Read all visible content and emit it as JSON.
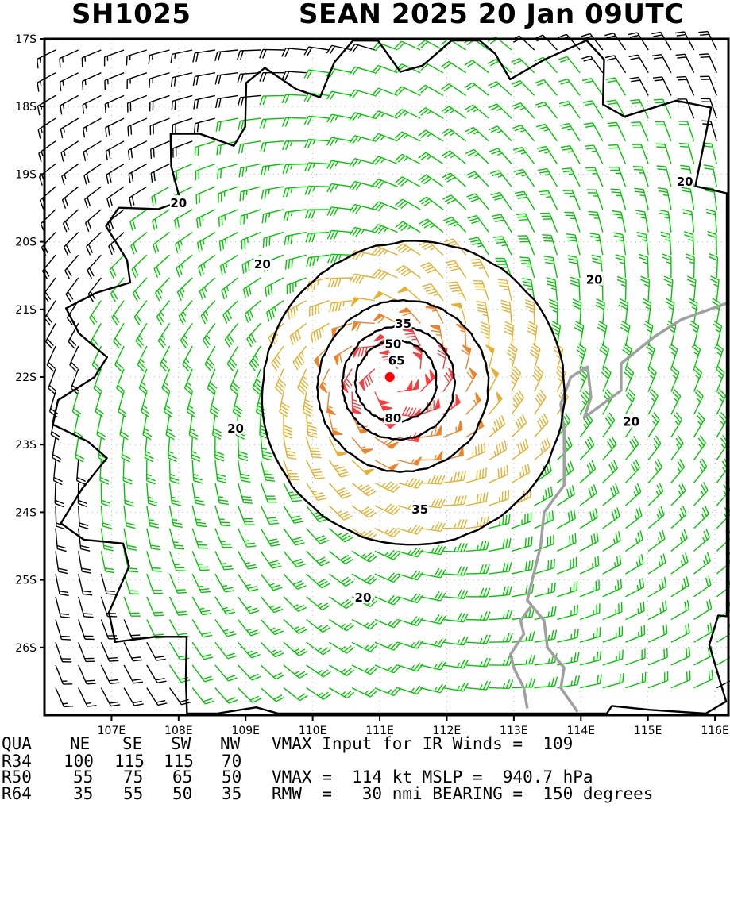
{
  "header": {
    "storm_id": "SH1025",
    "storm_title": "SEAN 2025 20 Jan 09UTC"
  },
  "map": {
    "lat_ticks": [
      "17S",
      "18S",
      "19S",
      "20S",
      "21S",
      "22S",
      "23S",
      "24S",
      "25S",
      "26S"
    ],
    "lon_ticks": [
      "107E",
      "108E",
      "109E",
      "110E",
      "111E",
      "112E",
      "113E",
      "114E",
      "115E",
      "116E"
    ],
    "lat_range": [
      -27.0,
      -17.0
    ],
    "lon_range": [
      106.0,
      116.2
    ],
    "storm_center": {
      "lat": -22.0,
      "lon": 111.15
    },
    "contour_labels": [
      {
        "text": "20",
        "lat": -19.42,
        "lon": 108.0
      },
      {
        "text": "20",
        "lat": -20.32,
        "lon": 109.25
      },
      {
        "text": "20",
        "lat": -20.55,
        "lon": 114.2
      },
      {
        "text": "20",
        "lat": -19.1,
        "lon": 115.55
      },
      {
        "text": "20",
        "lat": -22.75,
        "lon": 108.85
      },
      {
        "text": "20",
        "lat": -22.65,
        "lon": 114.75
      },
      {
        "text": "20",
        "lat": -25.25,
        "lon": 110.75
      },
      {
        "text": "35",
        "lat": -21.2,
        "lon": 111.35
      },
      {
        "text": "35",
        "lat": -23.95,
        "lon": 111.6
      },
      {
        "text": "50",
        "lat": -21.5,
        "lon": 111.2
      },
      {
        "text": "65",
        "lat": -21.75,
        "lon": 111.25
      },
      {
        "text": "80",
        "lat": -22.6,
        "lon": 111.2
      }
    ],
    "wind_color_scale": {
      "below_20": "#000000",
      "20_to_35": "#00c800",
      "35_to_50": "#e6af2d",
      "50_to_65": "#f08228",
      "above_65": "#fa3c3c"
    },
    "coastline_color": "#a0a0a0",
    "center_marker_color": "#ff0000"
  },
  "table": {
    "header": {
      "label": "QUA",
      "ne": "NE",
      "se": "SE",
      "sw": "SW",
      "nw": "NW",
      "info": "VMAX Input for IR Winds =  109"
    },
    "rows": [
      {
        "label": "R34",
        "ne": "100",
        "se": "115",
        "sw": "115",
        "nw": "70",
        "info": ""
      },
      {
        "label": "R50",
        "ne": "55",
        "se": "75",
        "sw": "65",
        "nw": "50",
        "info": "VMAX =  114 kt MSLP =  940.7 hPa"
      },
      {
        "label": "R64",
        "ne": "35",
        "se": "55",
        "sw": "50",
        "nw": "35",
        "info": "RMW  =   30 nmi BEARING =  150 degrees"
      }
    ]
  }
}
